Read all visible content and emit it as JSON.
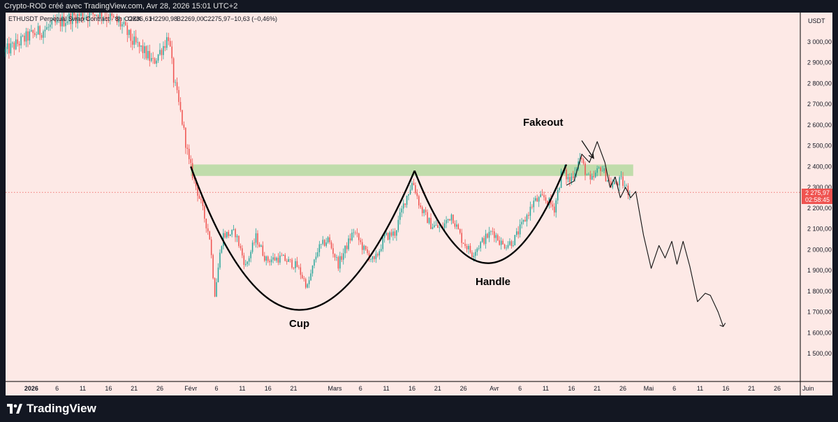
{
  "header": {
    "credit": "Crypto-ROD créé avec TradingView.com, Avr 28, 2026 15:01 UTC+2"
  },
  "legend": {
    "symbol": "ETHUSDT Perpetual Swap Contract · 8h · OKX",
    "open": "O2286,61",
    "high": "H2290,98",
    "low": "B2269,00",
    "close": "C2275,97",
    "change": "−10,63 (−0,46%)"
  },
  "price_scale": {
    "currency": "USDT",
    "last_price": "2 275,97",
    "countdown": "02:58:45"
  },
  "footer": {
    "brand": "TradingView"
  },
  "annotations": {
    "cup": "Cup",
    "handle": "Handle",
    "fakeout": "Fakeout"
  },
  "colors": {
    "background": "#fde9e6",
    "up_candle": "#26a69a",
    "down_candle": "#ef5350",
    "zone": "#b5d9a0",
    "price_label": "#ef5350",
    "frame": "#131722"
  },
  "chart_data": {
    "type": "candlestick",
    "title": "ETHUSDT Perpetual Swap Contract · 8h · OKX",
    "xlabel": "",
    "ylabel": "",
    "ylim": [
      1400,
      3100
    ],
    "y_ticks": [
      1500,
      1600,
      1700,
      1800,
      1900,
      2000,
      2100,
      2200,
      2300,
      2400,
      2500,
      2600,
      2700,
      2800,
      2900,
      3000
    ],
    "y_tick_labels": [
      "1 500,00",
      "1 600,00",
      "1 700,00",
      "1 800,00",
      "1 900,00",
      "2 000,00",
      "2 100,00",
      "2 200,00",
      "2 300,00",
      "2 400,00",
      "2 500,00",
      "2 600,00",
      "2 700,00",
      "2 800,00",
      "2 900,00",
      "3 000,00"
    ],
    "x_range_days": [
      -5,
      145
    ],
    "x_ticks": [
      {
        "day": 0,
        "label": "2026"
      },
      {
        "day": 5,
        "label": "6"
      },
      {
        "day": 10,
        "label": "11"
      },
      {
        "day": 15,
        "label": "16"
      },
      {
        "day": 20,
        "label": "21"
      },
      {
        "day": 25,
        "label": "26"
      },
      {
        "day": 31,
        "label": "Févr"
      },
      {
        "day": 36,
        "label": "6"
      },
      {
        "day": 41,
        "label": "11"
      },
      {
        "day": 46,
        "label": "16"
      },
      {
        "day": 51,
        "label": "21"
      },
      {
        "day": 59,
        "label": "Mars"
      },
      {
        "day": 64,
        "label": "6"
      },
      {
        "day": 69,
        "label": "11"
      },
      {
        "day": 74,
        "label": "16"
      },
      {
        "day": 79,
        "label": "21"
      },
      {
        "day": 84,
        "label": "26"
      },
      {
        "day": 90,
        "label": "Avr"
      },
      {
        "day": 95,
        "label": "6"
      },
      {
        "day": 100,
        "label": "11"
      },
      {
        "day": 105,
        "label": "16"
      },
      {
        "day": 110,
        "label": "21"
      },
      {
        "day": 115,
        "label": "26"
      },
      {
        "day": 120,
        "label": "Mai"
      },
      {
        "day": 125,
        "label": "6"
      },
      {
        "day": 130,
        "label": "11"
      },
      {
        "day": 135,
        "label": "16"
      },
      {
        "day": 140,
        "label": "21"
      },
      {
        "day": 145,
        "label": "26"
      },
      {
        "day": 151,
        "label": "Juin"
      }
    ],
    "price_anchors": [
      {
        "day": -5,
        "price": 2950
      },
      {
        "day": 0,
        "price": 3030
      },
      {
        "day": 3,
        "price": 3060
      },
      {
        "day": 8,
        "price": 3120
      },
      {
        "day": 14,
        "price": 3140
      },
      {
        "day": 18,
        "price": 3080
      },
      {
        "day": 20,
        "price": 3000
      },
      {
        "day": 22,
        "price": 2960
      },
      {
        "day": 24,
        "price": 2900
      },
      {
        "day": 26,
        "price": 2980
      },
      {
        "day": 27,
        "price": 3030
      },
      {
        "day": 28,
        "price": 2820
      },
      {
        "day": 29.5,
        "price": 2640
      },
      {
        "day": 31,
        "price": 2420
      },
      {
        "day": 33,
        "price": 2250
      },
      {
        "day": 35,
        "price": 2060
      },
      {
        "day": 36,
        "price": 1790
      },
      {
        "day": 37.5,
        "price": 2070
      },
      {
        "day": 40,
        "price": 2080
      },
      {
        "day": 42,
        "price": 1920
      },
      {
        "day": 44,
        "price": 2060
      },
      {
        "day": 46,
        "price": 1950
      },
      {
        "day": 49,
        "price": 1960
      },
      {
        "day": 52,
        "price": 1920
      },
      {
        "day": 54,
        "price": 1820
      },
      {
        "day": 56,
        "price": 2000
      },
      {
        "day": 58,
        "price": 2050
      },
      {
        "day": 60,
        "price": 1930
      },
      {
        "day": 63,
        "price": 2090
      },
      {
        "day": 65,
        "price": 2000
      },
      {
        "day": 67,
        "price": 1940
      },
      {
        "day": 69,
        "price": 2060
      },
      {
        "day": 71,
        "price": 2080
      },
      {
        "day": 73,
        "price": 2240
      },
      {
        "day": 74.5,
        "price": 2330
      },
      {
        "day": 76,
        "price": 2200
      },
      {
        "day": 78,
        "price": 2120
      },
      {
        "day": 80,
        "price": 2100
      },
      {
        "day": 82,
        "price": 2170
      },
      {
        "day": 84,
        "price": 2050
      },
      {
        "day": 86,
        "price": 1980
      },
      {
        "day": 88,
        "price": 2040
      },
      {
        "day": 90,
        "price": 2090
      },
      {
        "day": 92,
        "price": 2020
      },
      {
        "day": 94,
        "price": 2040
      },
      {
        "day": 96,
        "price": 2130
      },
      {
        "day": 98,
        "price": 2230
      },
      {
        "day": 100,
        "price": 2250
      },
      {
        "day": 102,
        "price": 2200
      },
      {
        "day": 103.5,
        "price": 2380
      },
      {
        "day": 105,
        "price": 2330
      },
      {
        "day": 107,
        "price": 2440
      },
      {
        "day": 109,
        "price": 2320
      },
      {
        "day": 111,
        "price": 2400
      },
      {
        "day": 113,
        "price": 2310
      },
      {
        "day": 115,
        "price": 2330
      },
      {
        "day": 116.5,
        "price": 2276
      }
    ],
    "resistance_zone": {
      "start_day": 31,
      "end_day": 117,
      "low": 2355,
      "high": 2410
    },
    "cup_curve": [
      {
        "day": 31,
        "price": 2400
      },
      {
        "day": 52,
        "price": 1710
      },
      {
        "day": 74.5,
        "price": 2380
      }
    ],
    "handle_curve": [
      {
        "day": 74.5,
        "price": 2380
      },
      {
        "day": 89,
        "price": 1935
      },
      {
        "day": 104,
        "price": 2410
      }
    ],
    "projection_path": [
      {
        "day": 104,
        "price": 2310
      },
      {
        "day": 105.5,
        "price": 2330
      },
      {
        "day": 107,
        "price": 2460
      },
      {
        "day": 108.5,
        "price": 2420
      },
      {
        "day": 110,
        "price": 2520
      },
      {
        "day": 111.5,
        "price": 2420
      },
      {
        "day": 112.5,
        "price": 2300
      },
      {
        "day": 113.5,
        "price": 2350
      },
      {
        "day": 114.5,
        "price": 2250
      },
      {
        "day": 115.5,
        "price": 2300
      },
      {
        "day": 116.5,
        "price": 2250
      },
      {
        "day": 117.5,
        "price": 2280
      },
      {
        "day": 119,
        "price": 2070
      },
      {
        "day": 120.5,
        "price": 1910
      },
      {
        "day": 122,
        "price": 2020
      },
      {
        "day": 123.2,
        "price": 1960
      },
      {
        "day": 124.5,
        "price": 2040
      },
      {
        "day": 125.5,
        "price": 1930
      },
      {
        "day": 126.7,
        "price": 2040
      },
      {
        "day": 128,
        "price": 1920
      },
      {
        "day": 129.5,
        "price": 1750
      },
      {
        "day": 131,
        "price": 1790
      },
      {
        "day": 132,
        "price": 1780
      },
      {
        "day": 133.5,
        "price": 1700
      },
      {
        "day": 134.5,
        "price": 1630
      }
    ],
    "current_price": 2275.97,
    "fakeout_arrow": {
      "from_day": 107,
      "from_price": 2525,
      "to_day": 109.3,
      "to_price": 2440
    }
  }
}
